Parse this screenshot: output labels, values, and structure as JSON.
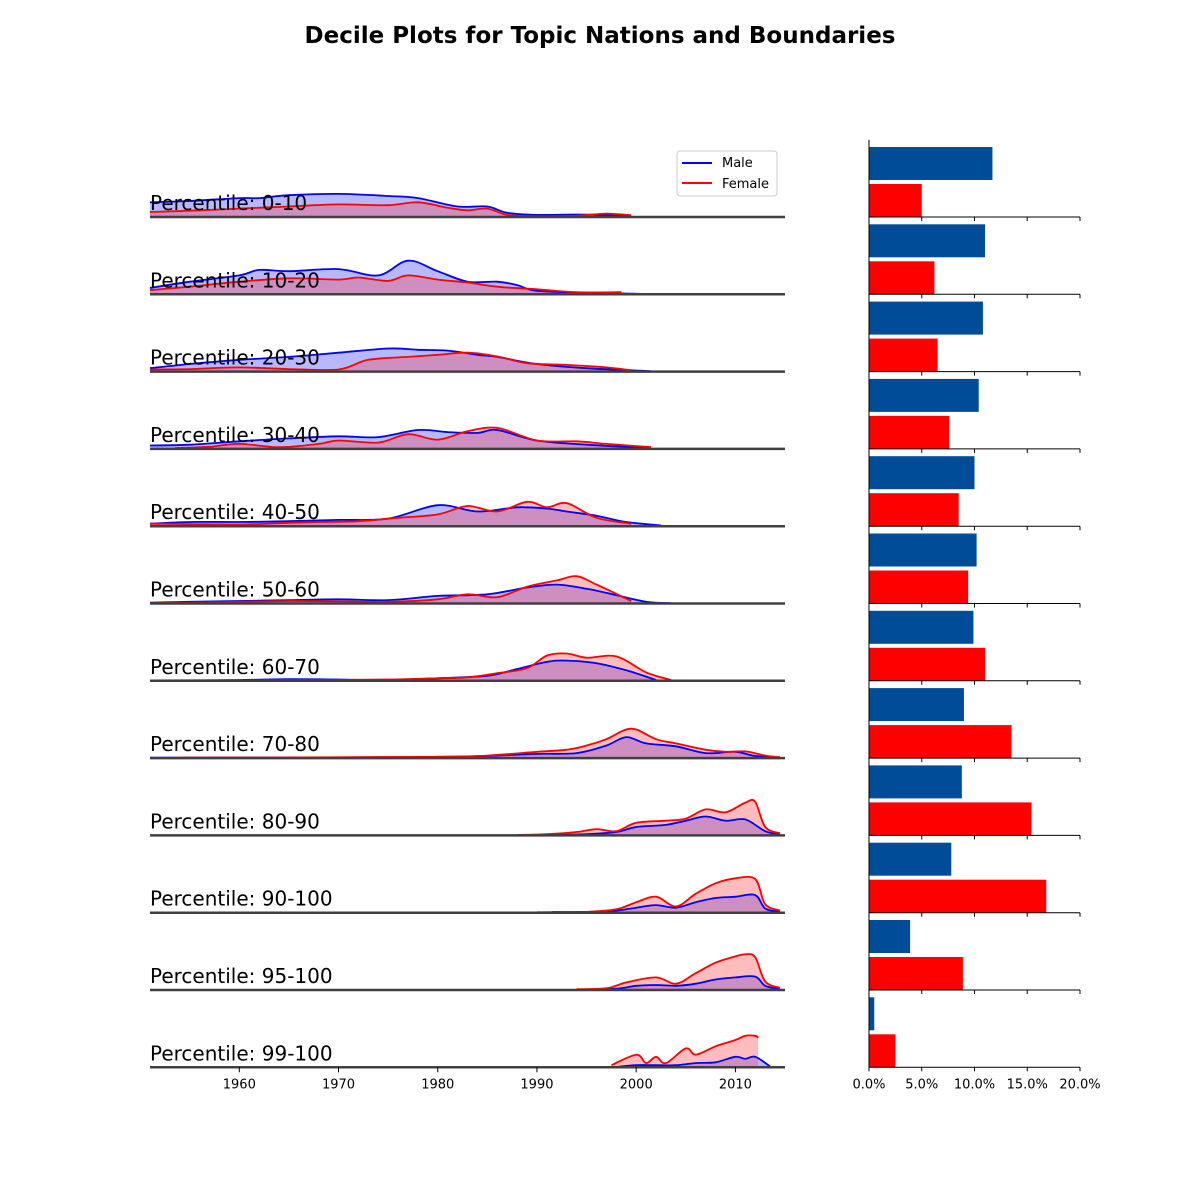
{
  "title": "Decile Plots for Topic Nations and Boundaries",
  "colors": {
    "male_line": "#0000ff",
    "male_fill": "#b8b8fc",
    "female_line": "#ff0000",
    "female_fill": "#ffbcbc",
    "overlap_fill": "#cc8fc0",
    "male_bar": "#004c99",
    "female_bar": "#ff0000",
    "baseline": "#404040"
  },
  "chart_data": [
    {
      "type": "area",
      "description_role": "ridgeline density of publication year per percentile group",
      "xlim": [
        1951,
        2015
      ],
      "xticks": [
        1960,
        1970,
        1980,
        1990,
        2000,
        2010
      ],
      "legend": {
        "position": "top-right",
        "entries": [
          "Male",
          "Female"
        ]
      },
      "rows": [
        {
          "label": "Percentile: 0-10",
          "male": {
            "x": [
              1951,
              1955,
              1960,
              1962,
              1965,
              1970,
              1975,
              1978,
              1982,
              1985,
              1987,
              1990,
              1994,
              1997,
              1999.5
            ],
            "y": [
              0.35,
              0.38,
              0.45,
              0.45,
              0.52,
              0.55,
              0.5,
              0.45,
              0.25,
              0.25,
              0.1,
              0.05,
              0.06,
              0.04,
              0.02
            ]
          },
          "female": {
            "x": [
              1951,
              1955,
              1960,
              1965,
              1970,
              1975,
              1978,
              1981,
              1983,
              1985,
              1987,
              1990,
              1994,
              1997,
              1999.5
            ],
            "y": [
              0.12,
              0.15,
              0.2,
              0.25,
              0.3,
              0.28,
              0.35,
              0.22,
              0.16,
              0.2,
              0.05,
              0.02,
              0.03,
              0.08,
              0.04
            ]
          }
        },
        {
          "label": "Percentile: 10-20",
          "male": {
            "x": [
              1951,
              1955,
              1960,
              1962,
              1965,
              1970,
              1974,
              1977,
              1980,
              1983,
              1986,
              1988,
              1990,
              1995,
              2000.5
            ],
            "y": [
              0.15,
              0.3,
              0.45,
              0.58,
              0.55,
              0.6,
              0.45,
              0.8,
              0.55,
              0.3,
              0.3,
              0.22,
              0.08,
              0.04,
              0.01
            ]
          },
          "female": {
            "x": [
              1951,
              1955,
              1960,
              1965,
              1970,
              1972,
              1975,
              1977,
              1980,
              1983,
              1986,
              1990,
              1994,
              1998.5
            ],
            "y": [
              0.1,
              0.18,
              0.3,
              0.38,
              0.35,
              0.4,
              0.32,
              0.45,
              0.35,
              0.28,
              0.18,
              0.12,
              0.05,
              0.05
            ]
          }
        },
        {
          "label": "Percentile: 20-30",
          "male": {
            "x": [
              1951,
              1955,
              1960,
              1965,
              1970,
              1975,
              1978,
              1981,
              1984,
              1986,
              1990,
              1995,
              2001.5
            ],
            "y": [
              0.08,
              0.18,
              0.28,
              0.35,
              0.45,
              0.55,
              0.52,
              0.5,
              0.4,
              0.35,
              0.18,
              0.08,
              0.01
            ]
          },
          "female": {
            "x": [
              1951,
              1955,
              1960,
              1965,
              1970,
              1973,
              1977,
              1980,
              1983,
              1986,
              1989,
              1993,
              1997,
              1999.5
            ],
            "y": [
              0.05,
              0.06,
              0.1,
              0.06,
              0.05,
              0.28,
              0.35,
              0.4,
              0.45,
              0.36,
              0.2,
              0.16,
              0.1,
              0.03
            ]
          }
        },
        {
          "label": "Percentile: 30-40",
          "male": {
            "x": [
              1951,
              1955,
              1960,
              1965,
              1970,
              1974,
              1978,
              1981,
              1984,
              1986,
              1990,
              1995,
              2001.5
            ],
            "y": [
              0.08,
              0.1,
              0.18,
              0.25,
              0.3,
              0.28,
              0.45,
              0.4,
              0.38,
              0.45,
              0.2,
              0.1,
              0.02
            ]
          },
          "female": {
            "x": [
              1953.5,
              1957,
              1960,
              1964,
              1968,
              1970,
              1974,
              1977,
              1980,
              1983,
              1986,
              1990,
              1994,
              1997,
              2001.5
            ],
            "y": [
              0.02,
              0.05,
              0.12,
              0.04,
              0.12,
              0.2,
              0.15,
              0.35,
              0.22,
              0.42,
              0.5,
              0.2,
              0.18,
              0.12,
              0.04
            ]
          }
        },
        {
          "label": "Percentile: 40-50",
          "male": {
            "x": [
              1951,
              1955,
              1960,
              1965,
              1970,
              1975,
              1980,
              1984,
              1988,
              1991,
              1993,
              1996,
              1999,
              2002.5
            ],
            "y": [
              0.06,
              0.1,
              0.1,
              0.12,
              0.15,
              0.18,
              0.5,
              0.35,
              0.45,
              0.42,
              0.35,
              0.25,
              0.1,
              0.02
            ]
          },
          "female": {
            "x": [
              1951,
              1955,
              1960,
              1965,
              1968,
              1972,
              1976,
              1980,
              1983,
              1986,
              1989,
              1991,
              1993,
              1996,
              1999.5
            ],
            "y": [
              0.06,
              0.05,
              0.04,
              0.08,
              0.1,
              0.12,
              0.2,
              0.28,
              0.48,
              0.35,
              0.58,
              0.45,
              0.55,
              0.2,
              0.06
            ]
          }
        },
        {
          "label": "Percentile: 50-60",
          "male": {
            "x": [
              1951,
              1955,
              1960,
              1965,
              1970,
              1975,
              1980,
              1985,
              1989,
              1992,
              1995,
              1998,
              2001,
              2003.5
            ],
            "y": [
              0.02,
              0.04,
              0.06,
              0.08,
              0.1,
              0.08,
              0.18,
              0.22,
              0.38,
              0.45,
              0.35,
              0.2,
              0.04,
              0.01
            ]
          },
          "female": {
            "x": [
              1951,
              1955,
              1960,
              1965,
              1970,
              1975,
              1980,
              1983,
              1986,
              1989,
              1992,
              1994,
              1996,
              1999.5
            ],
            "y": [
              0.01,
              0.02,
              0.04,
              0.06,
              0.05,
              0.04,
              0.1,
              0.22,
              0.15,
              0.4,
              0.55,
              0.65,
              0.45,
              0.06
            ]
          }
        },
        {
          "label": "Percentile: 60-70",
          "male": {
            "x": [
              1951,
              1960,
              1965,
              1970,
              1975,
              1980,
              1985,
              1988,
              1991,
              1993,
              1996,
              1999,
              2002
            ],
            "y": [
              0.01,
              0.02,
              0.04,
              0.03,
              0.02,
              0.06,
              0.12,
              0.28,
              0.45,
              0.48,
              0.42,
              0.25,
              0.02
            ]
          },
          "female": {
            "x": [
              1951,
              1960,
              1965,
              1970,
              1975,
              1980,
              1983,
              1986,
              1989,
              1991,
              1993,
              1995,
              1998,
              2001,
              2003.5
            ],
            "y": [
              0.01,
              0.01,
              0.02,
              0.02,
              0.03,
              0.06,
              0.08,
              0.18,
              0.3,
              0.6,
              0.65,
              0.55,
              0.58,
              0.2,
              0.02
            ]
          }
        },
        {
          "label": "Percentile: 70-80",
          "male": {
            "x": [
              1951,
              1975,
              1980,
              1985,
              1990,
              1994,
              1997,
              1999,
              2001,
              2004,
              2007,
              2010,
              2012,
              2014.5
            ],
            "y": [
              0.01,
              0.02,
              0.03,
              0.05,
              0.1,
              0.12,
              0.3,
              0.5,
              0.35,
              0.28,
              0.12,
              0.15,
              0.05,
              0.02
            ]
          },
          "female": {
            "x": [
              1954,
              1970,
              1980,
              1985,
              1990,
              1993,
              1995,
              1997,
              1999.5,
              2002,
              2004,
              2007,
              2009,
              2011,
              2013,
              2014.5
            ],
            "y": [
              0.01,
              0.02,
              0.03,
              0.06,
              0.15,
              0.2,
              0.3,
              0.45,
              0.7,
              0.45,
              0.35,
              0.2,
              0.15,
              0.16,
              0.06,
              0.02
            ]
          }
        },
        {
          "label": "Percentile: 80-90",
          "male": {
            "x": [
              1990,
              1995,
              1998,
              2000,
              2003,
              2005,
              2007,
              2009,
              2011,
              2013,
              2014.5
            ],
            "y": [
              0.01,
              0.03,
              0.08,
              0.2,
              0.25,
              0.35,
              0.45,
              0.35,
              0.38,
              0.1,
              0.02
            ]
          },
          "female": {
            "x": [
              1988,
              1991,
              1994,
              1996,
              1998,
              2000,
              2003,
              2005,
              2007,
              2009,
              2011,
              2012,
              2013,
              2014.5
            ],
            "y": [
              0.01,
              0.03,
              0.08,
              0.15,
              0.1,
              0.3,
              0.35,
              0.4,
              0.62,
              0.55,
              0.78,
              0.8,
              0.2,
              0.05
            ]
          }
        },
        {
          "label": "Percentile: 90-100",
          "male": {
            "x": [
              1990,
              1995,
              1998,
              2000,
              2002,
              2004,
              2006,
              2008,
              2010,
              2012,
              2013,
              2014.5
            ],
            "y": [
              0.01,
              0.02,
              0.05,
              0.12,
              0.18,
              0.12,
              0.25,
              0.35,
              0.38,
              0.42,
              0.1,
              0.02
            ]
          },
          "female": {
            "x": [
              1991.5,
              1995,
              1998,
              2000,
              2002,
              2004,
              2006,
              2008,
              2010,
              2012,
              2013,
              2014.5
            ],
            "y": [
              0.02,
              0.02,
              0.08,
              0.25,
              0.38,
              0.15,
              0.45,
              0.7,
              0.82,
              0.8,
              0.2,
              0.05
            ]
          }
        },
        {
          "label": "Percentile: 95-100",
          "male": {
            "x": [
              1995,
              1998,
              2000,
              2002,
              2004,
              2006,
              2008,
              2010,
              2012,
              2013,
              2014.5
            ],
            "y": [
              0.01,
              0.03,
              0.1,
              0.12,
              0.1,
              0.15,
              0.25,
              0.3,
              0.32,
              0.1,
              0.02
            ]
          },
          "female": {
            "x": [
              1994,
              1997,
              1999,
              2002,
              2004,
              2006,
              2008,
              2010,
              2011,
              2012,
              2013,
              2014.5
            ],
            "y": [
              0.02,
              0.04,
              0.18,
              0.3,
              0.15,
              0.4,
              0.65,
              0.8,
              0.85,
              0.78,
              0.2,
              0.05
            ]
          }
        },
        {
          "label": "Percentile: 99-100",
          "male": {
            "x": [
              1998,
              2000,
              2002,
              2004,
              2006,
              2008,
              2010,
              2011,
              2012,
              2013.5
            ],
            "y": [
              0.01,
              0.05,
              0.05,
              0.05,
              0.1,
              0.12,
              0.25,
              0.2,
              0.25,
              0.02
            ]
          },
          "female": {
            "x": [
              1997.5,
              2000,
              2001,
              2002,
              2003,
              2005,
              2006,
              2008,
              2010,
              2011,
              2012,
              2012.3
            ],
            "y": [
              0.05,
              0.3,
              0.1,
              0.25,
              0.1,
              0.45,
              0.3,
              0.5,
              0.65,
              0.75,
              0.75,
              0.7
            ]
          }
        }
      ],
      "series": [
        {
          "name": "Male"
        },
        {
          "name": "Female"
        }
      ]
    },
    {
      "type": "bar",
      "orientation": "horizontal",
      "xlim": [
        0,
        20
      ],
      "xticks": [
        "0.0%",
        "5.0%",
        "10.0%",
        "15.0%",
        "20.0%"
      ],
      "categories": [
        "0-10",
        "10-20",
        "20-30",
        "30-40",
        "40-50",
        "50-60",
        "60-70",
        "70-80",
        "80-90",
        "90-100",
        "95-100",
        "99-100"
      ],
      "series": [
        {
          "name": "Male",
          "values": [
            11.7,
            11.0,
            10.8,
            10.4,
            10.0,
            10.2,
            9.9,
            9.0,
            8.8,
            7.8,
            3.9,
            0.5
          ]
        },
        {
          "name": "Female",
          "values": [
            5.0,
            6.2,
            6.5,
            7.6,
            8.5,
            9.4,
            11.0,
            13.5,
            15.4,
            16.8,
            8.9,
            2.5
          ]
        }
      ]
    }
  ]
}
